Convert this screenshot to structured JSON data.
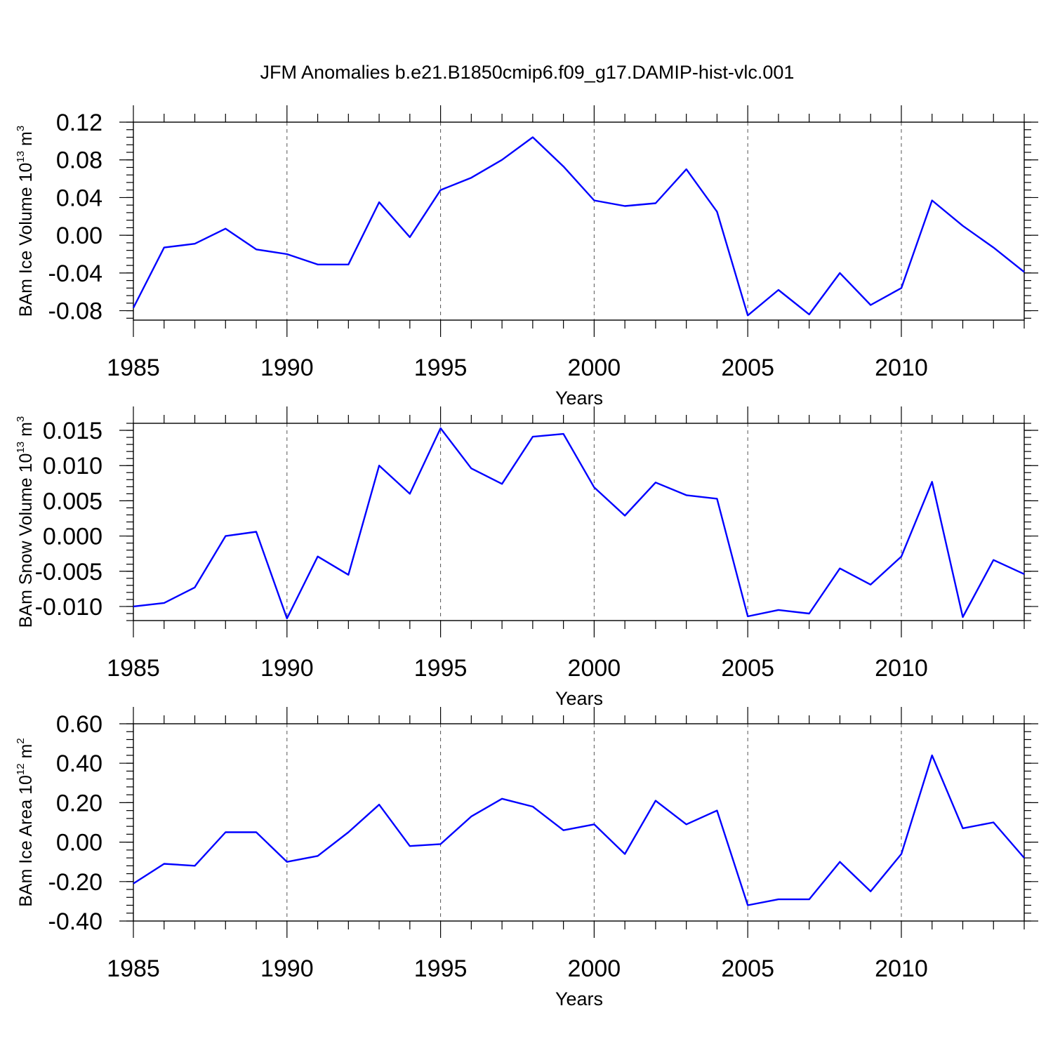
{
  "title": "JFM Anomalies b.e21.B1850cmip6.f09_g17.DAMIP-hist-vlc.001",
  "colors": {
    "line": "#0000ff",
    "axis": "#000000",
    "grid": "#555555"
  },
  "chart_data": [
    {
      "type": "line",
      "ylabel": {
        "text": "BAm Ice Volume 10",
        "exp": "13",
        "unit": " m",
        "unit_exp": "3"
      },
      "xlabel": "Years",
      "xlim": [
        1985,
        2014
      ],
      "ylim": [
        -0.09,
        0.12
      ],
      "yticks": [
        -0.08,
        -0.04,
        0.0,
        0.04,
        0.08,
        0.12
      ],
      "ytick_labels": [
        "-0.08",
        "-0.04",
        "0.00",
        "0.04",
        "0.08",
        "0.12"
      ],
      "yminor_step": 0.008,
      "xticks": [
        1985,
        1990,
        1995,
        2000,
        2005,
        2010
      ],
      "xtick_labels": [
        "1985",
        "1990",
        "1995",
        "2000",
        "2005",
        "2010"
      ],
      "grid_x": [
        1990,
        1995,
        2000,
        2005,
        2010
      ],
      "x": [
        1985,
        1986,
        1987,
        1988,
        1989,
        1990,
        1991,
        1992,
        1993,
        1994,
        1995,
        1996,
        1997,
        1998,
        1999,
        2000,
        2001,
        2002,
        2003,
        2004,
        2005,
        2006,
        2007,
        2008,
        2009,
        2010,
        2011,
        2012,
        2013,
        2014
      ],
      "series": [
        {
          "name": "BAm Ice Volume",
          "values": [
            -0.077,
            -0.013,
            -0.009,
            0.007,
            -0.015,
            -0.02,
            -0.031,
            -0.031,
            0.035,
            -0.002,
            0.048,
            0.061,
            0.08,
            0.104,
            0.073,
            0.037,
            0.031,
            0.034,
            0.07,
            0.025,
            -0.085,
            -0.058,
            -0.084,
            -0.04,
            -0.074,
            -0.056,
            0.037,
            0.01,
            -0.013,
            -0.039
          ]
        }
      ]
    },
    {
      "type": "line",
      "ylabel": {
        "text": "BAm Snow Volume 10",
        "exp": "13",
        "unit": " m",
        "unit_exp": "3"
      },
      "xlabel": "Years",
      "xlim": [
        1985,
        2014
      ],
      "ylim": [
        -0.012,
        0.016
      ],
      "yticks": [
        -0.01,
        -0.005,
        0.0,
        0.005,
        0.01,
        0.015
      ],
      "ytick_labels": [
        "-0.010",
        "-0.005",
        "0.000",
        "0.005",
        "0.010",
        "0.015"
      ],
      "yminor_step": 0.001,
      "xticks": [
        1985,
        1990,
        1995,
        2000,
        2005,
        2010
      ],
      "xtick_labels": [
        "1985",
        "1990",
        "1995",
        "2000",
        "2005",
        "2010"
      ],
      "grid_x": [
        1990,
        1995,
        2000,
        2005,
        2010
      ],
      "x": [
        1985,
        1986,
        1987,
        1988,
        1989,
        1990,
        1991,
        1992,
        1993,
        1994,
        1995,
        1996,
        1997,
        1998,
        1999,
        2000,
        2001,
        2002,
        2003,
        2004,
        2005,
        2006,
        2007,
        2008,
        2009,
        2010,
        2011,
        2012,
        2013,
        2014
      ],
      "series": [
        {
          "name": "BAm Snow Volume",
          "values": [
            -0.01,
            -0.0095,
            -0.0073,
            0.0,
            0.0006,
            -0.0117,
            -0.0029,
            -0.0055,
            0.01,
            0.006,
            0.0153,
            0.0096,
            0.0074,
            0.0141,
            0.0145,
            0.0069,
            0.0029,
            0.0076,
            0.0058,
            0.0053,
            -0.0114,
            -0.0105,
            -0.011,
            -0.0046,
            -0.0069,
            -0.0029,
            0.0077,
            -0.0115,
            -0.0034,
            -0.0054
          ]
        }
      ]
    },
    {
      "type": "line",
      "ylabel": {
        "text": "BAm Ice Area 10",
        "exp": "12",
        "unit": " m",
        "unit_exp": "2"
      },
      "xlabel": "Years",
      "xlim": [
        1985,
        2014
      ],
      "ylim": [
        -0.4,
        0.6
      ],
      "yticks": [
        -0.4,
        -0.2,
        0.0,
        0.2,
        0.4,
        0.6
      ],
      "ytick_labels": [
        "-0.40",
        "-0.20",
        "0.00",
        "0.20",
        "0.40",
        "0.60"
      ],
      "yminor_step": 0.04,
      "xticks": [
        1985,
        1990,
        1995,
        2000,
        2005,
        2010
      ],
      "xtick_labels": [
        "1985",
        "1990",
        "1995",
        "2000",
        "2005",
        "2010"
      ],
      "grid_x": [
        1990,
        1995,
        2000,
        2005,
        2010
      ],
      "x": [
        1985,
        1986,
        1987,
        1988,
        1989,
        1990,
        1991,
        1992,
        1993,
        1994,
        1995,
        1996,
        1997,
        1998,
        1999,
        2000,
        2001,
        2002,
        2003,
        2004,
        2005,
        2006,
        2007,
        2008,
        2009,
        2010,
        2011,
        2012,
        2013,
        2014
      ],
      "series": [
        {
          "name": "BAm Ice Area",
          "values": [
            -0.21,
            -0.11,
            -0.12,
            0.05,
            0.05,
            -0.1,
            -0.07,
            0.05,
            0.19,
            -0.02,
            -0.01,
            0.13,
            0.22,
            0.18,
            0.06,
            0.09,
            -0.06,
            0.21,
            0.09,
            0.16,
            -0.32,
            -0.29,
            -0.29,
            -0.1,
            -0.25,
            -0.06,
            0.44,
            0.07,
            0.1,
            -0.08
          ]
        }
      ]
    }
  ]
}
